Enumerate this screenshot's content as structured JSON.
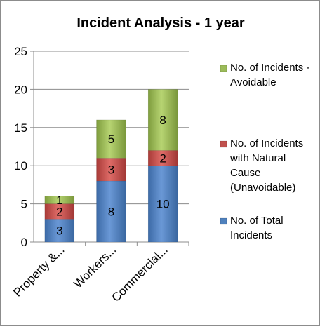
{
  "chart_data": {
    "type": "bar",
    "stacked": true,
    "title": "Incident Analysis - 1 year",
    "xlabel": "",
    "ylabel": "",
    "ylim": [
      0,
      25
    ],
    "yticks": [
      0,
      5,
      10,
      15,
      20,
      25
    ],
    "grid": true,
    "legend_position": "right",
    "categories": [
      "Property &...",
      "Workers...",
      "Commercial..."
    ],
    "series": [
      {
        "name": "No. of Total Incidents",
        "values": [
          3,
          8,
          10
        ],
        "color": "#4f81bd"
      },
      {
        "name": "No. of Incidents with Natural Cause (Unavoidable)",
        "values": [
          2,
          3,
          2
        ],
        "color": "#c0504d"
      },
      {
        "name": "No. of Incidents - Avoidable",
        "values": [
          1,
          5,
          8
        ],
        "color": "#9bbb59"
      }
    ],
    "legend": [
      {
        "series": 2,
        "lines": [
          "No. of Incidents -",
          "Avoidable"
        ]
      },
      {
        "series": 1,
        "lines": [
          "No. of Incidents",
          "with Natural",
          "Cause",
          "(Unavoidable)"
        ]
      },
      {
        "series": 0,
        "lines": [
          "No. of Total",
          "Incidents"
        ]
      }
    ]
  }
}
